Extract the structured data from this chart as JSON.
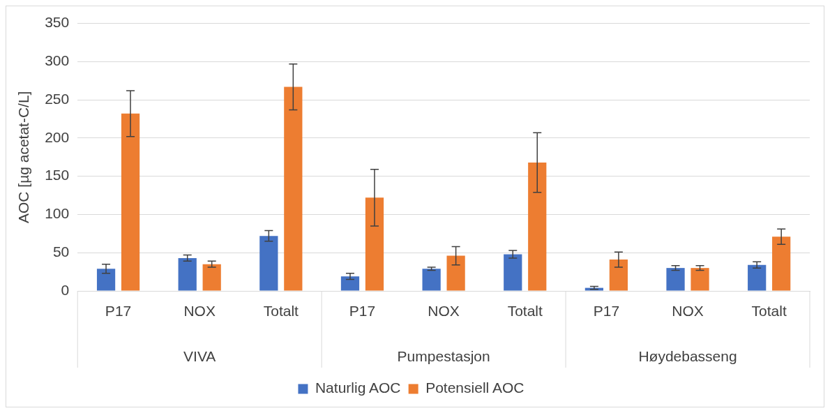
{
  "chart_data": {
    "type": "bar",
    "ylabel": "AOC [µg acetat-C/L]",
    "categories": [
      "P17",
      "NOX",
      "Totalt",
      "P17",
      "NOX",
      "Totalt",
      "P17",
      "NOX",
      "Totalt"
    ],
    "annotations": [
      "VIVA",
      "Pumpestasjon",
      "Høydebasseng"
    ],
    "series": [
      {
        "name": "Naturlig AOC",
        "color": "#4472c4",
        "values": [
          29,
          43,
          72,
          19,
          29,
          48,
          4,
          30,
          34
        ],
        "errors": [
          6,
          4,
          7,
          4,
          2,
          5,
          2,
          3,
          4
        ]
      },
      {
        "name": "Potensiell AOC",
        "color": "#ed7d31",
        "values": [
          232,
          35,
          267,
          122,
          46,
          168,
          41,
          30,
          71
        ],
        "errors": [
          30,
          4,
          30,
          37,
          12,
          39,
          10,
          3,
          10
        ]
      }
    ],
    "ylim": [
      0,
      350
    ],
    "yticks": [
      0,
      50,
      100,
      150,
      200,
      250,
      300,
      350
    ],
    "grid": "y",
    "legend": "bottom"
  }
}
